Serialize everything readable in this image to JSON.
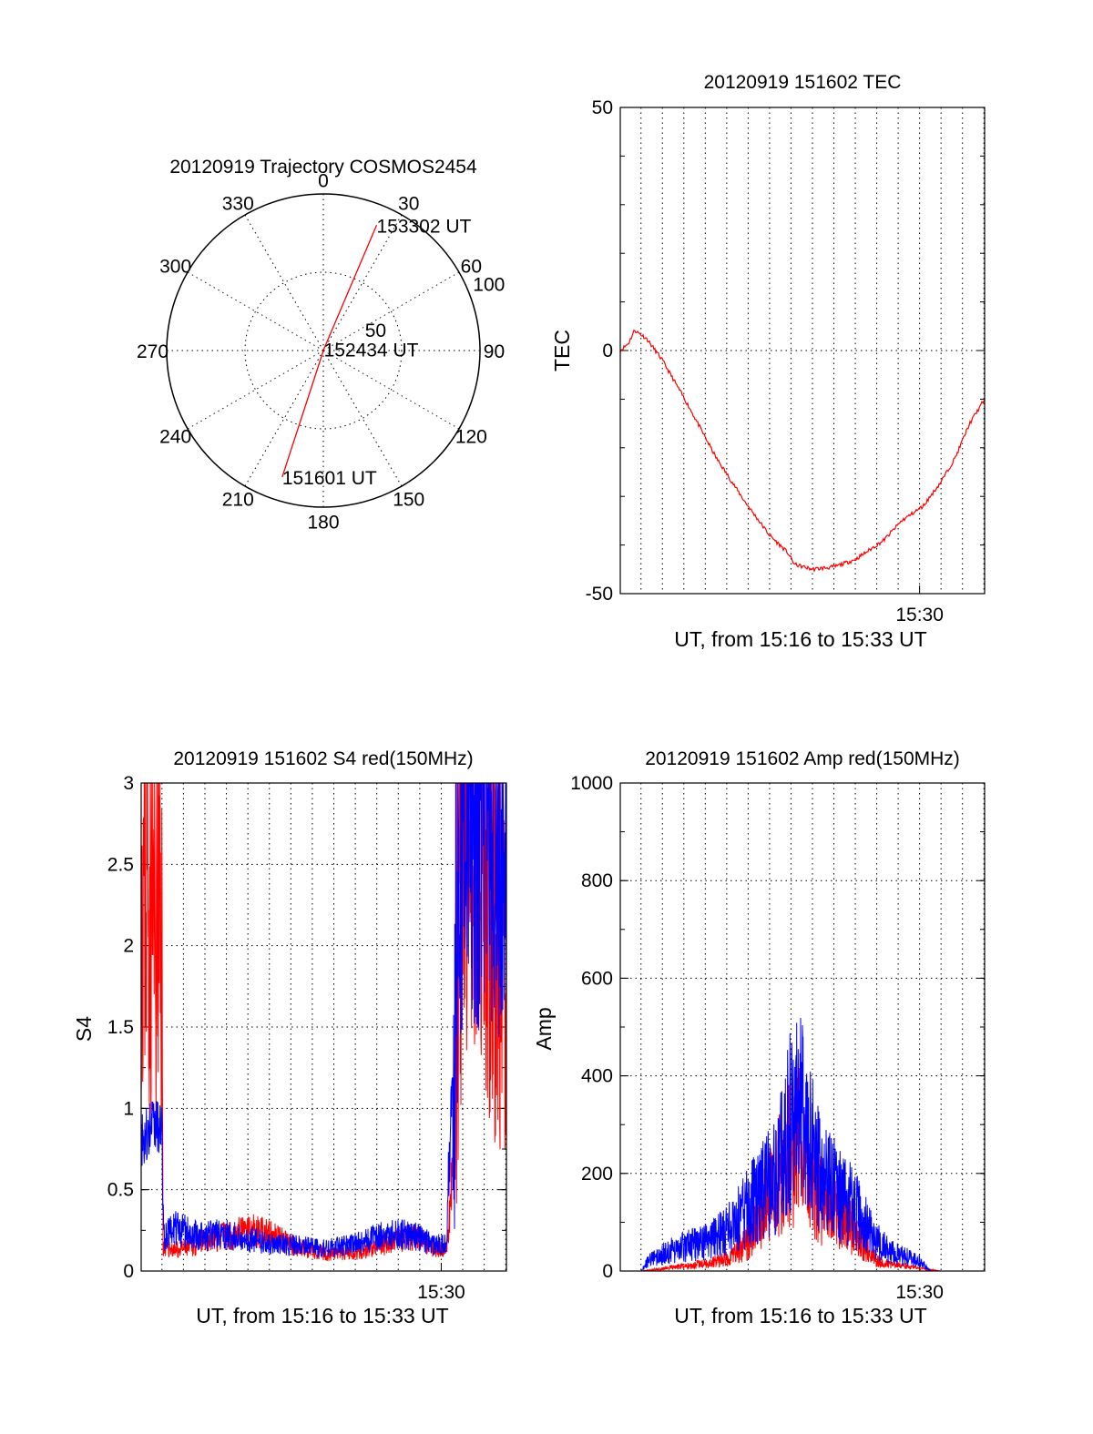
{
  "colors": {
    "red": "#ff0000",
    "blue": "#0000ff",
    "axis": "#000000",
    "background": "#ffffff"
  },
  "chart_data": [
    {
      "type": "polar",
      "title": "20120919 Trajectory COSMOS2454",
      "angle_labels": [
        "0",
        "30",
        "60",
        "90",
        "120",
        "150",
        "180",
        "210",
        "240",
        "270",
        "300",
        "330"
      ],
      "radial_labels": [
        "50",
        "100"
      ],
      "rlim": [
        0,
        100
      ],
      "grid": true,
      "series": [
        {
          "color": "red",
          "points": [
            {
              "azimuth": 198,
              "r": 85
            },
            {
              "azimuth": 20,
              "r": 1
            },
            {
              "azimuth": 23,
              "r": 87
            }
          ],
          "annotations": [
            {
              "text": "151601 UT",
              "azimuth": 198,
              "r": 85
            },
            {
              "text": "152434 UT",
              "azimuth": 20,
              "r": 1
            },
            {
              "text": "153302 UT",
              "azimuth": 23,
              "r": 87
            }
          ]
        }
      ]
    },
    {
      "type": "line",
      "title": "20120919 151602 TEC",
      "xlabel": "UT, from 15:16 to 15:33 UT",
      "ylabel": "TEC",
      "xlim": [
        "15:16:02",
        "15:33:02"
      ],
      "ylim": [
        -50,
        50
      ],
      "x_tick_labels": [
        {
          "label": "15:30",
          "t": "15:30:00"
        }
      ],
      "y_tick_labels": [
        "-50",
        "0",
        "50"
      ],
      "grid": true,
      "series": [
        {
          "color": "red",
          "x": [
            "15:16:02",
            "15:16:25",
            "15:16:42",
            "15:17:15",
            "15:18:00",
            "15:19:10",
            "15:20:30",
            "15:21:50",
            "15:23:00",
            "15:23:50",
            "15:24:10",
            "15:25:00",
            "15:26:00",
            "15:27:00",
            "15:27:40",
            "15:28:20",
            "15:29:10",
            "15:30:10",
            "15:31:00",
            "15:31:40",
            "15:32:20",
            "15:33:02"
          ],
          "y": [
            0,
            1.5,
            4.2,
            2.5,
            -2,
            -11,
            -22,
            -31,
            -38,
            -41.5,
            -44,
            -45,
            -44.5,
            -43,
            -41,
            -39,
            -35,
            -32,
            -27,
            -22,
            -15,
            -10
          ]
        }
      ]
    },
    {
      "type": "line",
      "title": "20120919 151602 S4 red(150MHz)",
      "xlabel": "UT, from 15:16 to 15:33 UT",
      "ylabel": "S4",
      "xlim": [
        "15:16:02",
        "15:33:02"
      ],
      "ylim": [
        0,
        3
      ],
      "x_tick_labels": [
        {
          "label": "15:30",
          "t": "15:30:00"
        }
      ],
      "y_tick_labels": [
        "0",
        "0.5",
        "1",
        "1.5",
        "2",
        "2.5",
        "3"
      ],
      "grid": true,
      "series": [
        {
          "color": "red",
          "x": [
            "15:16:02",
            "15:17:00",
            "15:17:03",
            "15:17:40",
            "15:18:20",
            "15:19:00",
            "15:19:40",
            "15:20:30",
            "15:21:20",
            "15:22:10",
            "15:23:00",
            "15:23:50",
            "15:24:40",
            "15:25:30",
            "15:26:20",
            "15:27:10",
            "15:28:00",
            "15:28:50",
            "15:29:40",
            "15:30:15",
            "15:30:30",
            "15:31:00",
            "15:31:40",
            "15:32:20",
            "15:33:02"
          ],
          "y": [
            2.5,
            2.0,
            0.15,
            0.12,
            0.14,
            0.18,
            0.2,
            0.22,
            0.24,
            0.2,
            0.16,
            0.12,
            0.1,
            0.1,
            0.12,
            0.15,
            0.18,
            0.2,
            0.14,
            0.12,
            0.6,
            2.8,
            2.6,
            2.2,
            2.0
          ]
        },
        {
          "color": "blue",
          "x": [
            "15:16:02",
            "15:16:30",
            "15:17:00",
            "15:17:05",
            "15:17:40",
            "15:18:20",
            "15:19:00",
            "15:19:40",
            "15:20:30",
            "15:21:20",
            "15:22:10",
            "15:23:00",
            "15:23:50",
            "15:24:40",
            "15:25:30",
            "15:26:20",
            "15:27:10",
            "15:28:00",
            "15:28:50",
            "15:29:40",
            "15:30:15",
            "15:30:35",
            "15:31:00",
            "15:31:40",
            "15:32:20",
            "15:33:02"
          ],
          "y": [
            0.8,
            0.9,
            0.85,
            0.2,
            0.25,
            0.22,
            0.2,
            0.22,
            0.2,
            0.18,
            0.16,
            0.15,
            0.14,
            0.13,
            0.15,
            0.17,
            0.2,
            0.22,
            0.2,
            0.16,
            0.15,
            1.5,
            2.9,
            2.85,
            2.8,
            2.8
          ]
        }
      ]
    },
    {
      "type": "line",
      "title": "20120919 151602 Amp red(150MHz)",
      "xlabel": "UT, from 15:16 to 15:33 UT",
      "ylabel": "Amp",
      "xlim": [
        "15:16:02",
        "15:33:02"
      ],
      "ylim": [
        0,
        1000
      ],
      "x_tick_labels": [
        {
          "label": "15:30",
          "t": "15:30:00"
        }
      ],
      "y_tick_labels": [
        "0",
        "200",
        "400",
        "600",
        "800",
        "1000"
      ],
      "grid": true,
      "series": [
        {
          "color": "red",
          "x": [
            "15:16:02",
            "15:17:00",
            "15:18:00",
            "15:19:00",
            "15:20:00",
            "15:21:00",
            "15:22:00",
            "15:22:40",
            "15:23:20",
            "15:23:50",
            "15:24:20",
            "15:24:50",
            "15:25:20",
            "15:26:00",
            "15:26:40",
            "15:27:20",
            "15:28:00",
            "15:28:40",
            "15:29:20",
            "15:30:00",
            "15:31:00",
            "15:33:02"
          ],
          "y": [
            0,
            0,
            5,
            10,
            15,
            25,
            60,
            120,
            180,
            240,
            260,
            220,
            150,
            120,
            100,
            60,
            20,
            15,
            10,
            5,
            0,
            0
          ]
        },
        {
          "color": "blue",
          "x": [
            "15:16:02",
            "15:17:00",
            "15:17:20",
            "15:18:00",
            "15:19:00",
            "15:20:00",
            "15:21:00",
            "15:22:00",
            "15:22:40",
            "15:23:20",
            "15:23:50",
            "15:24:20",
            "15:24:50",
            "15:25:20",
            "15:26:00",
            "15:26:40",
            "15:27:20",
            "15:28:00",
            "15:28:40",
            "15:29:20",
            "15:30:00",
            "15:30:30",
            "15:31:00",
            "15:33:02"
          ],
          "y": [
            0,
            0,
            20,
            35,
            50,
            60,
            80,
            130,
            160,
            200,
            280,
            350,
            260,
            200,
            170,
            140,
            110,
            60,
            40,
            30,
            20,
            0,
            0,
            0
          ]
        }
      ]
    }
  ]
}
